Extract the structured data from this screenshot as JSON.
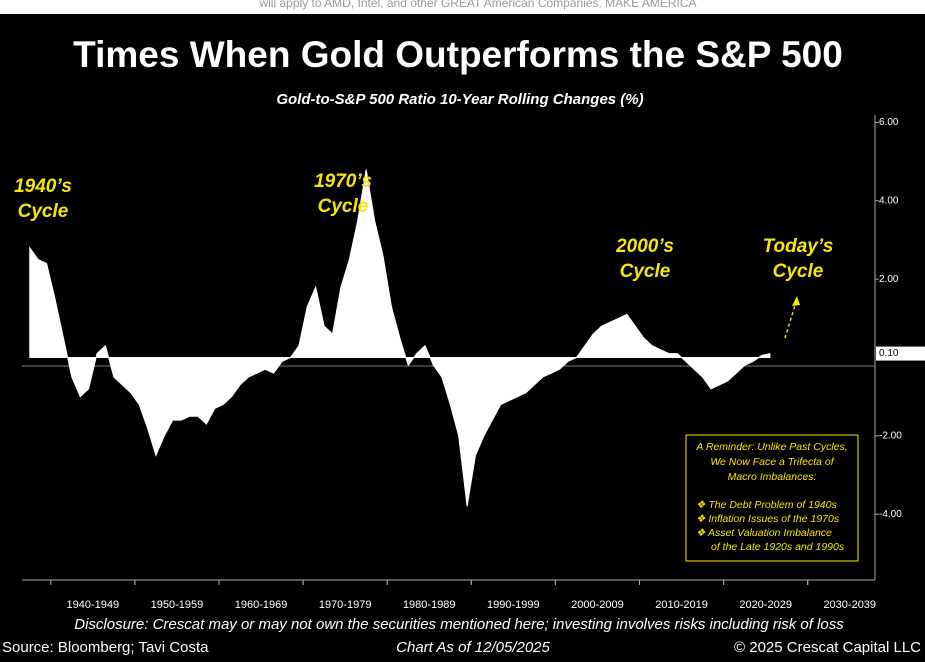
{
  "chart_data": {
    "type": "area",
    "header_note": "will apply to AMD, Intel, and other GREAT American Companies. MAKE AMERICA",
    "title": "Times When Gold Outperforms the S&P 500",
    "subtitle": "Gold-to-S&P 500 Ratio 10-Year Rolling Changes (%)",
    "categories": [
      null,
      null,
      null,
      null,
      null,
      null,
      null,
      null,
      null,
      "1940-1949",
      null,
      null,
      null,
      null,
      null,
      null,
      null,
      null,
      null,
      "1950-1959",
      null,
      null,
      null,
      null,
      null,
      null,
      null,
      null,
      null,
      "1960-1969",
      null,
      null,
      null,
      null,
      null,
      null,
      null,
      null,
      null,
      "1970-1979",
      null,
      null,
      null,
      null,
      null,
      null,
      null,
      null,
      null,
      "1980-1989",
      null,
      null,
      null,
      null,
      null,
      null,
      null,
      null,
      null,
      "1990-1999",
      null,
      null,
      null,
      null,
      null,
      null,
      null,
      null,
      null,
      "2000-2009",
      null,
      null,
      null,
      null,
      null,
      null,
      null,
      null,
      null,
      "2010-2019",
      null,
      null,
      null,
      null,
      null,
      null,
      null,
      null,
      null,
      "2020-2029",
      null,
      null,
      null,
      null,
      null,
      null,
      null,
      null,
      null,
      "2030-2039",
      null,
      null
    ],
    "values": [
      null,
      2.8,
      2.5,
      2.4,
      1.5,
      0.5,
      -0.5,
      -1.0,
      -0.8,
      0.1,
      0.3,
      -0.5,
      -0.7,
      -0.9,
      -1.2,
      -1.8,
      -2.5,
      -2.0,
      -1.6,
      -1.6,
      -1.5,
      -1.5,
      -1.7,
      -1.3,
      -1.2,
      -1.0,
      -0.7,
      -0.5,
      -0.4,
      -0.3,
      -0.4,
      -0.1,
      0.0,
      0.3,
      1.3,
      1.8,
      0.8,
      0.6,
      1.8,
      2.5,
      3.5,
      4.8,
      3.5,
      2.6,
      1.3,
      0.5,
      -0.2,
      0.1,
      0.3,
      -0.2,
      -0.5,
      -1.2,
      -2.0,
      -3.8,
      -2.5,
      -2.0,
      -1.6,
      -1.2,
      -1.1,
      -1.0,
      -0.9,
      -0.7,
      -0.5,
      -0.4,
      -0.3,
      -0.1,
      0.0,
      0.3,
      0.6,
      0.8,
      0.9,
      1.0,
      1.1,
      0.8,
      0.5,
      0.3,
      0.2,
      0.1,
      0.1,
      -0.1,
      -0.3,
      -0.5,
      -0.8,
      -0.7,
      -0.6,
      -0.4,
      -0.2,
      -0.1,
      0.05,
      0.1,
      null,
      null,
      null,
      null,
      null,
      null,
      null,
      null,
      null,
      null,
      null,
      null
    ],
    "color": "#ffffff",
    "ylim": [
      -5.68,
      6.19
    ],
    "yticks": [
      {
        "value": -4,
        "label": "-4.00"
      },
      {
        "value": -2,
        "label": "-2.00"
      },
      {
        "value": 2,
        "label": "2.00"
      },
      {
        "value": 4,
        "label": "4.00"
      },
      {
        "value": 6,
        "label": "6.00"
      }
    ],
    "last_value": {
      "value": 0.1,
      "label": "0.10"
    },
    "annotations": [
      {
        "lines": [
          "1940’s",
          "Cycle"
        ]
      },
      {
        "lines": [
          "1970’s",
          "Cycle"
        ]
      },
      {
        "lines": [
          "2000’s",
          "Cycle"
        ]
      },
      {
        "lines": [
          "Today’s",
          "Cycle"
        ]
      }
    ],
    "note_box": {
      "heading": [
        "A Reminder: Unlike Past Cycles,",
        "We Now Face a Trifecta of",
        "Macro Imbalances:"
      ],
      "items": [
        "❖  The Debt Problem of 1940s",
        "❖  Inflation Issues of the 1970s",
        "❖  Asset Valuation Imbalance",
        "of the Late 1920s and 1990s"
      ]
    },
    "disclosure": "Disclosure: Crescat may or may not own the securities mentioned here; investing involves risks including risk of loss",
    "source": "Source: Bloomberg; Tavi Costa",
    "date_note": "Chart As of 12/05/2025",
    "copyright": "© 2025 Crescat Capital LLC"
  }
}
